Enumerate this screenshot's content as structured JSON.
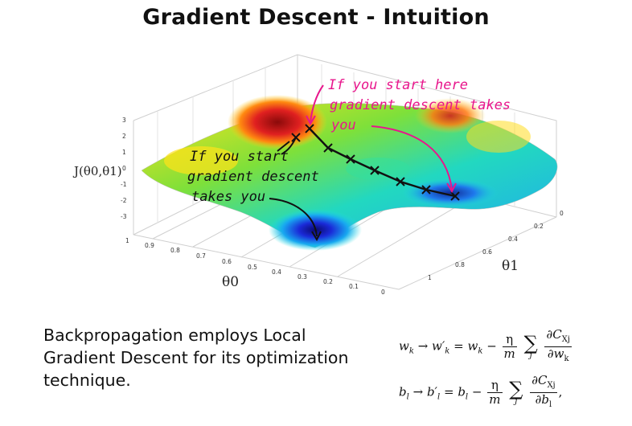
{
  "title": "Gradient Descent - Intuition",
  "plot": {
    "z_label": "J(θ0,θ1)",
    "x_label": "θ0",
    "y_label": "θ1",
    "z_ticks": [
      "3",
      "2",
      "1",
      "0",
      "-1",
      "-2",
      "-3"
    ],
    "x_ticks": [
      "1",
      "0.9",
      "0.8",
      "0.7",
      "0.6",
      "0.5",
      "0.4",
      "0.3",
      "0.2",
      "0.1",
      "0"
    ],
    "y_ticks": [
      "0",
      "0.2",
      "0.4",
      "0.6",
      "0.8",
      "1"
    ],
    "annotation_black": [
      "If you start",
      "gradient descent",
      "takes you"
    ],
    "annotation_pink": [
      "If you start here",
      "gradient descent takes",
      "you"
    ],
    "colors": {
      "pink": "#e8168c",
      "path": "#111111"
    }
  },
  "caption": "Backpropagation employs Local Gradient Descent for its optimization technique.",
  "equations": {
    "w": {
      "lhs": "w",
      "sub": "k",
      "arrow": "→",
      "mid": "w′",
      "eq": "=",
      "minus": "−",
      "eta": "η",
      "m": "m",
      "partial_num": "∂C",
      "xj": "Xj",
      "partial_den": "∂w",
      "j": "j"
    },
    "b": {
      "lhs": "b",
      "sub": "l",
      "arrow": "→",
      "mid": "b′",
      "eq": "=",
      "minus": "−",
      "eta": "η",
      "m": "m",
      "partial_num": "∂C",
      "xj": "Xj",
      "partial_den": "∂b",
      "j": "j",
      "comma": ","
    }
  }
}
